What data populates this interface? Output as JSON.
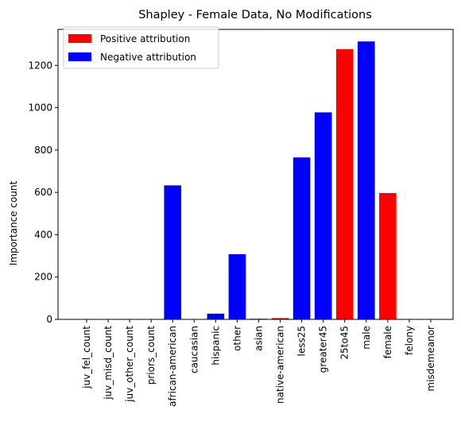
{
  "chart_data": {
    "type": "bar",
    "title": "Shapley - Female Data, No Modifications",
    "xlabel": "",
    "ylabel": "Importance count",
    "ylim": [
      0,
      1370
    ],
    "yticks": [
      0,
      200,
      400,
      600,
      800,
      1000,
      1200
    ],
    "grid": false,
    "legend_position": "top-left",
    "categories": [
      "juv_fel_count",
      "juv_misd_count",
      "juv_other_count",
      "priors_count",
      "african-american",
      "caucasian",
      "hispanic",
      "other",
      "asian",
      "native-american",
      "less25",
      "greater45",
      "25to45",
      "male",
      "female",
      "felony",
      "misdemeanor"
    ],
    "values": [
      0,
      0,
      0,
      0,
      633,
      0,
      27,
      308,
      3,
      6,
      765,
      978,
      1277,
      1313,
      597,
      0,
      0
    ],
    "attribution": [
      "none",
      "none",
      "none",
      "none",
      "negative",
      "none",
      "negative",
      "negative",
      "positive",
      "positive",
      "negative",
      "negative",
      "positive",
      "negative",
      "positive",
      "none",
      "none"
    ],
    "legend": [
      {
        "label": "Positive attribution",
        "color": "#ff0000"
      },
      {
        "label": "Negative attribution",
        "color": "#0000ff"
      }
    ],
    "colors": {
      "positive": "#ff0000",
      "negative": "#0000ff"
    }
  }
}
